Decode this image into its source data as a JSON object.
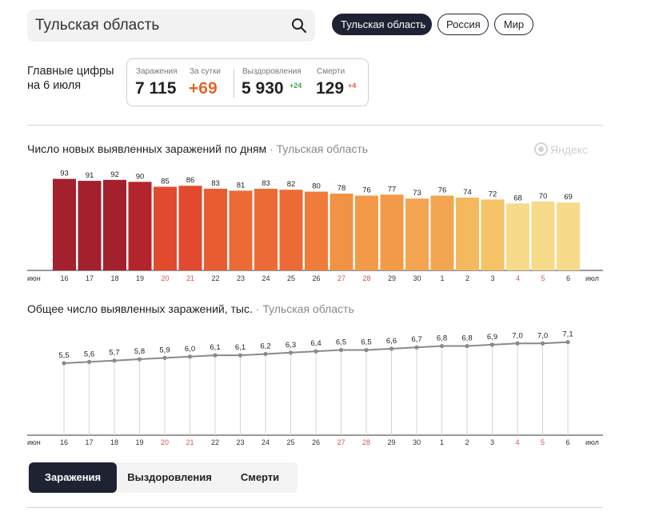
{
  "search": {
    "value": "Тульская область"
  },
  "region_buttons": [
    "Тульская область",
    "Россия",
    "Мир"
  ],
  "headline": {
    "line1": "Главные цифры",
    "line2": "на 6 июля"
  },
  "stats": {
    "infections_label": "Заражения",
    "infections_value": "7 115",
    "daily_label": "За сутки",
    "daily_value": "+69",
    "recovered_label": "Выздоровления",
    "recovered_value": "5 930",
    "recovered_delta": "+24",
    "deaths_label": "Смерти",
    "deaths_value": "129",
    "deaths_delta": "+4"
  },
  "colors": {
    "delta_green": "#3aa655",
    "delta_orange": "#e0672c",
    "dark": "#1f2233",
    "weekend": "#d9534f"
  },
  "logo_text": "Яндекс",
  "chart_data": [
    {
      "type": "bar",
      "title": "Число новых выявленных заражений по дням",
      "subtitle": "Тульская область",
      "month_start_label": "июн",
      "month_end_label": "июл",
      "categories": [
        "16",
        "17",
        "18",
        "19",
        "20",
        "21",
        "22",
        "23",
        "24",
        "25",
        "26",
        "27",
        "28",
        "29",
        "30",
        "1",
        "2",
        "3",
        "4",
        "5",
        "6"
      ],
      "weekend_categories": [
        "20",
        "21",
        "27",
        "28",
        "4",
        "5"
      ],
      "values": [
        93,
        91,
        92,
        90,
        85,
        86,
        83,
        81,
        83,
        82,
        80,
        78,
        76,
        77,
        73,
        76,
        74,
        72,
        68,
        70,
        69
      ],
      "bar_colors": [
        "#a3202d",
        "#a3202d",
        "#a3202d",
        "#b3242c",
        "#e24a2f",
        "#e24a2f",
        "#e95b31",
        "#ec6a35",
        "#ec6a35",
        "#ec6a35",
        "#ef7c3a",
        "#f19244",
        "#f29a48",
        "#f29a48",
        "#f3a552",
        "#f3a552",
        "#f4b95f",
        "#f5c266",
        "#f7da8a",
        "#f7da8a",
        "#f7da8a"
      ]
    },
    {
      "type": "line",
      "title": "Общее число выявленных заражений, тыс.",
      "subtitle": "Тульская область",
      "month_start_label": "июн",
      "month_end_label": "июл",
      "categories": [
        "16",
        "17",
        "18",
        "19",
        "20",
        "21",
        "22",
        "23",
        "24",
        "25",
        "26",
        "27",
        "28",
        "29",
        "30",
        "1",
        "2",
        "3",
        "4",
        "5",
        "6"
      ],
      "weekend_categories": [
        "20",
        "21",
        "27",
        "28",
        "4",
        "5"
      ],
      "values": [
        5.5,
        5.6,
        5.7,
        5.8,
        5.9,
        6.0,
        6.1,
        6.1,
        6.2,
        6.3,
        6.4,
        6.5,
        6.5,
        6.6,
        6.7,
        6.8,
        6.8,
        6.9,
        7.0,
        7.0,
        7.1
      ],
      "labels": [
        "5,5",
        "5,6",
        "5,7",
        "5,8",
        "5,9",
        "6,0",
        "6,1",
        "6,1",
        "6,2",
        "6,3",
        "6,4",
        "6,5",
        "6,5",
        "6,6",
        "6,7",
        "6,8",
        "6,8",
        "6,9",
        "7,0",
        "7,0",
        "7,1"
      ]
    }
  ],
  "tabs": [
    "Заражения",
    "Выздоровления",
    "Смерти"
  ]
}
